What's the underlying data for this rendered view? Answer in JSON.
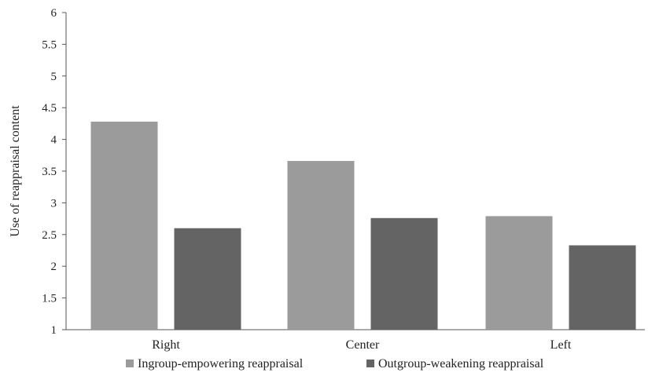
{
  "chart_data": {
    "type": "bar",
    "categories": [
      "Right",
      "Center",
      "Left"
    ],
    "series": [
      {
        "name": "Ingroup-empowering reappraisal",
        "values": [
          4.28,
          3.66,
          2.79
        ],
        "color": "#9b9b9b"
      },
      {
        "name": "Outgroup-weakening reappraisal",
        "values": [
          2.6,
          2.76,
          2.33
        ],
        "color": "#646464"
      }
    ],
    "title": "",
    "xlabel": "",
    "ylabel": "Use of reappraisal content",
    "ylim": [
      1,
      6
    ],
    "yticks": [
      "1",
      "1.5",
      "2",
      "2.5",
      "3",
      "3.5",
      "4",
      "4.5",
      "5",
      "5.5",
      "6"
    ],
    "grid": false,
    "legend_position": "bottom"
  }
}
